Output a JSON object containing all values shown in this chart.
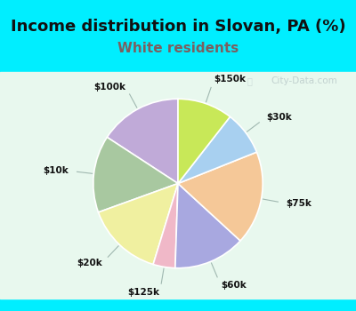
{
  "title": "Income distribution in Slovan, PA (%)",
  "subtitle": "White residents",
  "title_fontsize": 13,
  "subtitle_fontsize": 11,
  "title_color": "#111111",
  "subtitle_color": "#7a6060",
  "bg_cyan": "#00eeff",
  "bg_chart": "#d8f0e0",
  "labels": [
    "$100k",
    "$10k",
    "$20k",
    "$125k",
    "$60k",
    "$75k",
    "$30k",
    "$150k"
  ],
  "sizes": [
    15,
    14,
    14,
    4,
    13,
    17,
    8,
    10
  ],
  "colors": [
    "#c0aad8",
    "#a8c8a0",
    "#f0f0a0",
    "#f0b8c8",
    "#a8a8e0",
    "#f5c898",
    "#a8d0f0",
    "#c8e858"
  ],
  "startangle": 90,
  "watermark": "City-Data.com"
}
